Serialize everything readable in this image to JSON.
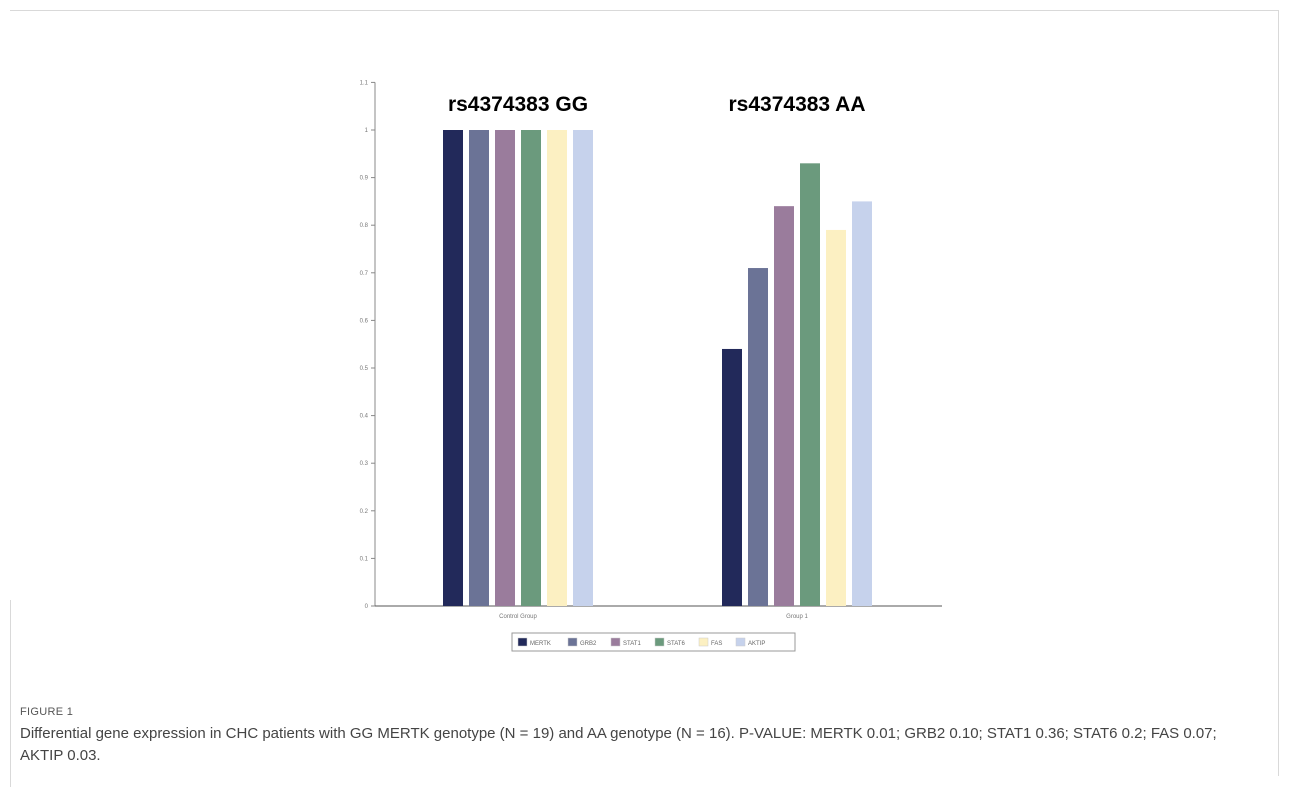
{
  "chart_data": {
    "type": "bar",
    "categories": [
      "Control Group",
      "Group 1"
    ],
    "category_titles": [
      "rs4374383 GG",
      "rs4374383 AA"
    ],
    "series": [
      {
        "name": "MERTK",
        "values": [
          1.0,
          0.54
        ],
        "color": "#22295a"
      },
      {
        "name": "GRB2",
        "values": [
          1.0,
          0.71
        ],
        "color": "#6b7396"
      },
      {
        "name": "STAT1",
        "values": [
          1.0,
          0.84
        ],
        "color": "#9a7c9c"
      },
      {
        "name": "STAT6",
        "values": [
          1.0,
          0.93
        ],
        "color": "#6b9a7d"
      },
      {
        "name": "FAS",
        "values": [
          1.0,
          0.79
        ],
        "color": "#fcf0c2"
      },
      {
        "name": "AKTIP",
        "values": [
          1.0,
          0.85
        ],
        "color": "#c6d2ec"
      }
    ],
    "yticks": [
      "0",
      "0.1",
      "0.2",
      "0.3",
      "0.4",
      "0.5",
      "0.6",
      "0.7",
      "0.8",
      "0.9",
      "1",
      "1.1"
    ],
    "ylim": [
      0,
      1.1
    ],
    "legend_position": "bottom-center",
    "grid": false
  },
  "figure": {
    "label": "FIGURE 1",
    "caption": "Differential gene expression in CHC patients with GG MERTK genotype (N = 19) and AA genotype (N = 16). P-VALUE: MERTK 0.01; GRB2 0.10; STAT1 0.36; STAT6 0.2; FAS 0.07; AKTIP 0.03."
  }
}
